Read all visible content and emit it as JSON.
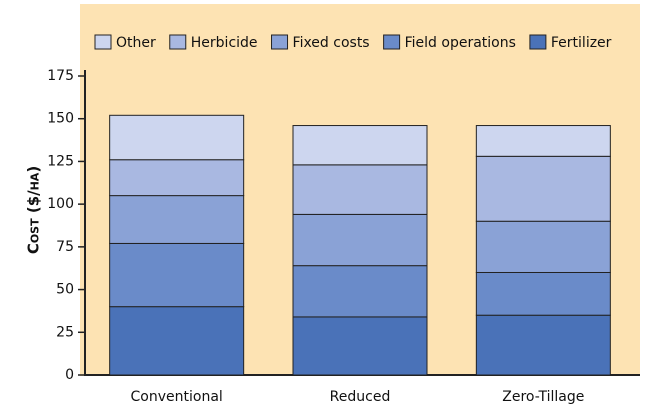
{
  "chart_data": {
    "type": "stacked_bar",
    "y_label": "Cost ($/ha)",
    "categories": [
      "Conventional",
      "Reduced",
      "Zero-Tillage"
    ],
    "series": [
      {
        "name": "Fertilizer",
        "color": "#4a72b8",
        "values": [
          40,
          34,
          35
        ]
      },
      {
        "name": "Field operations",
        "color": "#6a8bc9",
        "values": [
          37,
          30,
          25
        ]
      },
      {
        "name": "Fixed costs",
        "color": "#8aa2d6",
        "values": [
          28,
          30,
          30
        ]
      },
      {
        "name": "Herbicide",
        "color": "#a9b8e1",
        "values": [
          21,
          29,
          38
        ]
      },
      {
        "name": "Other",
        "color": "#cdd6ef",
        "values": [
          26,
          23,
          18
        ]
      }
    ],
    "ylim": [
      0,
      175
    ],
    "yticks": [
      0,
      25,
      50,
      75,
      100,
      125,
      150,
      175
    ],
    "background": "#fde3b3"
  }
}
